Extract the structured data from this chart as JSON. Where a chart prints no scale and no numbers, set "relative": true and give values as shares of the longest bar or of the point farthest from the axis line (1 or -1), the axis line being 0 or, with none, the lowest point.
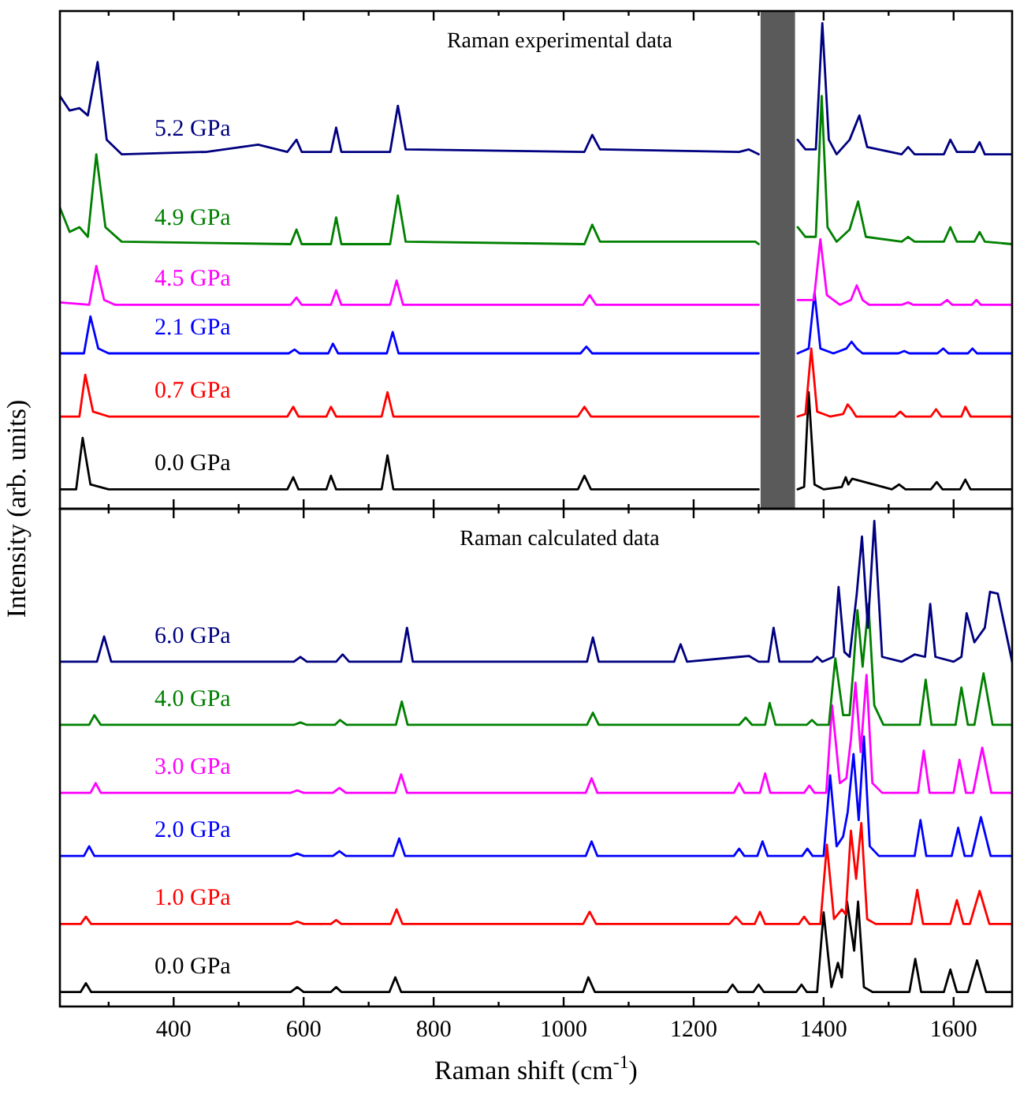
{
  "chart_data": [
    {
      "type": "line",
      "title": "Raman experimental data",
      "ylabel": "Intensity (arb. units)",
      "relative": true,
      "tick_labels": false,
      "xlim": [
        225,
        1690
      ],
      "xticks": [
        {
          "value": 300,
          "label": null
        },
        400,
        {
          "value": 500,
          "label": null
        },
        600,
        {
          "value": 700,
          "label": null
        },
        800,
        {
          "value": 900,
          "label": null
        },
        1000,
        {
          "value": 1100,
          "label": null
        },
        1200,
        {
          "value": 1300,
          "label": null
        },
        1400,
        {
          "value": 1500,
          "label": null
        },
        1600
      ],
      "bands": [
        {
          "axis": "x",
          "from": 1303,
          "to": 1356,
          "color": "#5a5a5a"
        }
      ],
      "series": [
        {
          "name": "0.0 GPa",
          "color": "#000000",
          "x": [
            225,
            250,
            260,
            272,
            300,
            575,
            584,
            592,
            635,
            642,
            650,
            720,
            729,
            738,
            1022,
            1032,
            1042,
            1295,
            1300,
            1330,
            1360,
            1370,
            1377,
            1386,
            1400,
            1428,
            1434,
            1438,
            1444,
            1505,
            1516,
            1526,
            1565,
            1574,
            1583,
            1610,
            1618,
            1626,
            1690
          ],
          "values": [
            0.04,
            0.04,
            0.146,
            0.05,
            0.04,
            0.04,
            0.065,
            0.04,
            0.04,
            0.068,
            0.04,
            0.04,
            0.11,
            0.04,
            0.04,
            0.068,
            0.04,
            0.04,
            0.04,
            null,
            0.04,
            0.045,
            0.24,
            0.05,
            0.04,
            0.045,
            0.065,
            0.05,
            0.062,
            0.04,
            0.05,
            0.04,
            0.04,
            0.055,
            0.04,
            0.04,
            0.06,
            0.04,
            0.04
          ]
        },
        {
          "name": "0.7 GPa",
          "color": "#ff0000",
          "x": [
            225,
            255,
            264,
            276,
            300,
            575,
            584,
            592,
            635,
            642,
            650,
            720,
            729,
            738,
            1022,
            1032,
            1042,
            1295,
            1300,
            1330,
            1360,
            1372,
            1381,
            1390,
            1410,
            1430,
            1437,
            1443,
            1450,
            1510,
            1518,
            1526,
            1565,
            1573,
            1581,
            1612,
            1618,
            1626,
            1690
          ],
          "values": [
            0.19,
            0.19,
            0.276,
            0.2,
            0.19,
            0.19,
            0.21,
            0.19,
            0.19,
            0.21,
            0.19,
            0.19,
            0.24,
            0.19,
            0.19,
            0.21,
            0.19,
            0.19,
            0.19,
            null,
            0.19,
            0.195,
            0.33,
            0.2,
            0.19,
            0.195,
            0.215,
            0.205,
            0.19,
            0.19,
            0.2,
            0.19,
            0.19,
            0.205,
            0.19,
            0.19,
            0.21,
            0.19,
            0.19
          ]
        },
        {
          "name": "2.1 GPa",
          "color": "#0000ff",
          "x": [
            225,
            262,
            272,
            284,
            300,
            577,
            586,
            594,
            638,
            645,
            653,
            728,
            737,
            746,
            1026,
            1035,
            1044,
            1295,
            1300,
            1330,
            1360,
            1377,
            1386,
            1395,
            1415,
            1435,
            1443,
            1451,
            1460,
            1515,
            1524,
            1532,
            1575,
            1584,
            1592,
            1622,
            1629,
            1636,
            1690
          ],
          "values": [
            0.32,
            0.32,
            0.396,
            0.33,
            0.32,
            0.32,
            0.328,
            0.32,
            0.32,
            0.34,
            0.32,
            0.32,
            0.364,
            0.32,
            0.32,
            0.334,
            0.32,
            0.32,
            0.32,
            null,
            0.32,
            0.33,
            0.445,
            0.33,
            0.32,
            0.33,
            0.344,
            0.33,
            0.32,
            0.32,
            0.325,
            0.32,
            0.32,
            0.33,
            0.32,
            0.32,
            0.33,
            0.32,
            0.32
          ]
        },
        {
          "name": "4.5 GPa",
          "color": "#ff00ff",
          "x": [
            225,
            270,
            281,
            293,
            310,
            580,
            589,
            597,
            642,
            650,
            658,
            733,
            743,
            753,
            1030,
            1040,
            1050,
            1295,
            1300,
            1330,
            1360,
            1385,
            1395,
            1405,
            1425,
            1442,
            1451,
            1460,
            1470,
            1520,
            1530,
            1538,
            1580,
            1590,
            1598,
            1628,
            1635,
            1642,
            1690
          ],
          "values": [
            0.425,
            0.42,
            0.5,
            0.43,
            0.42,
            0.42,
            0.435,
            0.42,
            0.42,
            0.45,
            0.42,
            0.42,
            0.47,
            0.42,
            0.42,
            0.44,
            0.42,
            0.42,
            0.42,
            null,
            0.43,
            0.43,
            0.555,
            0.44,
            0.42,
            0.43,
            0.46,
            0.43,
            0.42,
            0.42,
            0.425,
            0.42,
            0.42,
            0.43,
            0.42,
            0.42,
            0.43,
            0.42,
            0.42
          ]
        },
        {
          "name": "4.9 GPa",
          "color": "#008000",
          "x": [
            225,
            240,
            255,
            268,
            281,
            295,
            320,
            580,
            589,
            597,
            642,
            650,
            658,
            733,
            745,
            757,
            1032,
            1044,
            1056,
            1295,
            1300,
            1330,
            1360,
            1372,
            1388,
            1397,
            1406,
            1420,
            1440,
            1453,
            1465,
            1520,
            1530,
            1540,
            1585,
            1595,
            1605,
            1632,
            1640,
            1648,
            1690
          ],
          "values": [
            0.62,
            0.57,
            0.58,
            0.56,
            0.73,
            0.58,
            0.55,
            0.545,
            0.575,
            0.545,
            0.545,
            0.6,
            0.545,
            0.545,
            0.645,
            0.55,
            0.545,
            0.585,
            0.55,
            0.55,
            0.545,
            null,
            0.58,
            0.56,
            0.56,
            0.85,
            0.58,
            0.55,
            0.575,
            0.633,
            0.56,
            0.55,
            0.56,
            0.55,
            0.55,
            0.58,
            0.55,
            0.55,
            0.57,
            0.55,
            0.545
          ]
        },
        {
          "name": "5.2 GPa",
          "color": "#000080",
          "x": [
            225,
            240,
            255,
            268,
            283,
            297,
            320,
            450,
            530,
            575,
            589,
            597,
            642,
            650,
            658,
            733,
            745,
            757,
            1032,
            1044,
            1056,
            1270,
            1285,
            1300,
            1330,
            1360,
            1372,
            1388,
            1398,
            1408,
            1420,
            1440,
            1455,
            1467,
            1520,
            1530,
            1540,
            1585,
            1595,
            1605,
            1632,
            1640,
            1648,
            1690
          ],
          "values": [
            0.85,
            0.82,
            0.825,
            0.81,
            0.92,
            0.76,
            0.73,
            0.735,
            0.75,
            0.735,
            0.76,
            0.735,
            0.735,
            0.785,
            0.735,
            0.735,
            0.83,
            0.74,
            0.735,
            0.77,
            0.74,
            0.735,
            0.74,
            0.73,
            null,
            0.76,
            0.74,
            0.74,
            1,
            0.76,
            0.73,
            0.76,
            0.81,
            0.745,
            0.73,
            0.745,
            0.73,
            0.73,
            0.76,
            0.735,
            0.735,
            0.755,
            0.73,
            0.73
          ]
        }
      ]
    },
    {
      "type": "line",
      "title": "Raman calculated data",
      "xlabel": "Raman shift (cm$^{-1}$)",
      "relative": true,
      "tick_labels": "x",
      "xlim": [
        225,
        1690
      ],
      "xticks": [
        {
          "value": 300,
          "label": null
        },
        {
          "value": 400,
          "label": "400"
        },
        {
          "value": 500,
          "label": null
        },
        {
          "value": 600,
          "label": "600"
        },
        {
          "value": 700,
          "label": null
        },
        {
          "value": 800,
          "label": "800"
        },
        {
          "value": 900,
          "label": null
        },
        {
          "value": 1000,
          "label": "1000"
        },
        {
          "value": 1100,
          "label": null
        },
        {
          "value": 1200,
          "label": "1200"
        },
        {
          "value": 1300,
          "label": null
        },
        {
          "value": 1400,
          "label": "1400"
        },
        {
          "value": 1500,
          "label": null
        },
        {
          "value": 1600,
          "label": "1600"
        }
      ],
      "series": [
        {
          "name": "0.0 GPa",
          "color": "#000000",
          "x": [
            225,
            257,
            265,
            273,
            580,
            590,
            600,
            642,
            650,
            658,
            732,
            741,
            750,
            1030,
            1038,
            1048,
            1252,
            1260,
            1268,
            1292,
            1300,
            1308,
            1358,
            1366,
            1374,
            1390,
            1400,
            1412,
            1422,
            1428,
            1436,
            1447,
            1453,
            1462,
            1475,
            1532,
            1541,
            1550,
            1585,
            1595,
            1605,
            1622,
            1636,
            1650,
            1690
          ],
          "values": [
            0.03,
            0.03,
            0.048,
            0.03,
            0.03,
            0.04,
            0.03,
            0.03,
            0.04,
            0.03,
            0.03,
            0.06,
            0.03,
            0.03,
            0.06,
            0.03,
            0.03,
            0.045,
            0.03,
            0.03,
            0.045,
            0.03,
            0.03,
            0.045,
            0.03,
            0.03,
            0.194,
            0.04,
            0.09,
            0.06,
            0.216,
            0.115,
            0.216,
            0.04,
            0.03,
            0.03,
            0.098,
            0.03,
            0.03,
            0.076,
            0.03,
            0.03,
            0.095,
            0.03,
            0.03
          ]
        },
        {
          "name": "1.0 GPa",
          "color": "#ff0000",
          "x": [
            225,
            257,
            265,
            273,
            580,
            590,
            600,
            642,
            650,
            658,
            734,
            743,
            752,
            1030,
            1040,
            1050,
            1255,
            1265,
            1275,
            1294,
            1302,
            1310,
            1362,
            1370,
            1378,
            1395,
            1405,
            1416,
            1428,
            1434,
            1442,
            1450,
            1458,
            1467,
            1480,
            1535,
            1544,
            1553,
            1595,
            1605,
            1615,
            1625,
            1640,
            1655,
            1690
          ],
          "values": [
            0.17,
            0.17,
            0.185,
            0.17,
            0.17,
            0.175,
            0.17,
            0.17,
            0.178,
            0.17,
            0.17,
            0.2,
            0.17,
            0.17,
            0.195,
            0.17,
            0.17,
            0.185,
            0.17,
            0.17,
            0.195,
            0.17,
            0.17,
            0.185,
            0.17,
            0.17,
            0.333,
            0.18,
            0.2,
            0.19,
            0.362,
            0.263,
            0.378,
            0.18,
            0.17,
            0.17,
            0.24,
            0.17,
            0.17,
            0.219,
            0.17,
            0.17,
            0.238,
            0.17,
            0.17
          ]
        },
        {
          "name": "2.0 GPa",
          "color": "#0000ff",
          "x": [
            225,
            262,
            270,
            278,
            580,
            590,
            600,
            645,
            655,
            665,
            738,
            747,
            756,
            1034,
            1043,
            1052,
            1262,
            1270,
            1278,
            1298,
            1306,
            1314,
            1367,
            1375,
            1383,
            1400,
            1410,
            1420,
            1430,
            1437,
            1446,
            1454,
            1462,
            1471,
            1485,
            1540,
            1549,
            1558,
            1597,
            1607,
            1617,
            1628,
            1642,
            1657,
            1690
          ],
          "values": [
            0.31,
            0.31,
            0.33,
            0.31,
            0.31,
            0.315,
            0.31,
            0.31,
            0.32,
            0.31,
            0.31,
            0.346,
            0.31,
            0.31,
            0.34,
            0.31,
            0.31,
            0.325,
            0.31,
            0.31,
            0.34,
            0.31,
            0.31,
            0.325,
            0.31,
            0.31,
            0.476,
            0.33,
            0.35,
            0.4,
            0.52,
            0.384,
            0.556,
            0.33,
            0.31,
            0.31,
            0.384,
            0.31,
            0.31,
            0.368,
            0.31,
            0.31,
            0.39,
            0.31,
            0.31
          ]
        },
        {
          "name": "3.0 GPa",
          "color": "#ff00ff",
          "x": [
            225,
            272,
            280,
            288,
            580,
            590,
            600,
            645,
            655,
            665,
            741,
            750,
            759,
            1034,
            1043,
            1052,
            1262,
            1270,
            1278,
            1302,
            1310,
            1318,
            1370,
            1378,
            1386,
            1404,
            1413,
            1425,
            1435,
            1442,
            1449,
            1457,
            1466,
            1475,
            1490,
            1545,
            1554,
            1563,
            1600,
            1609,
            1619,
            1630,
            1644,
            1658,
            1690
          ],
          "values": [
            0.44,
            0.44,
            0.46,
            0.44,
            0.44,
            0.445,
            0.44,
            0.44,
            0.45,
            0.44,
            0.44,
            0.478,
            0.44,
            0.44,
            0.47,
            0.44,
            0.44,
            0.46,
            0.44,
            0.44,
            0.48,
            0.44,
            0.44,
            0.455,
            0.44,
            0.44,
            0.62,
            0.46,
            0.47,
            0.55,
            0.667,
            0.524,
            0.683,
            0.46,
            0.44,
            0.44,
            0.527,
            0.44,
            0.44,
            0.508,
            0.44,
            0.44,
            0.533,
            0.44,
            0.44
          ]
        },
        {
          "name": "4.0 GPa",
          "color": "#008000",
          "x": [
            225,
            270,
            278,
            288,
            585,
            595,
            605,
            648,
            656,
            666,
            742,
            751,
            760,
            1036,
            1045,
            1054,
            1270,
            1280,
            1290,
            1310,
            1317,
            1326,
            1374,
            1382,
            1390,
            1408,
            1418,
            1430,
            1440,
            1446,
            1452,
            1460,
            1469,
            1478,
            1492,
            1548,
            1557,
            1566,
            1603,
            1612,
            1622,
            1632,
            1646,
            1660,
            1690
          ],
          "values": [
            0.58,
            0.58,
            0.6,
            0.58,
            0.58,
            0.585,
            0.58,
            0.58,
            0.59,
            0.58,
            0.58,
            0.628,
            0.58,
            0.58,
            0.605,
            0.58,
            0.58,
            0.595,
            0.58,
            0.58,
            0.625,
            0.58,
            0.58,
            0.59,
            0.58,
            0.58,
            0.717,
            0.6,
            0.6,
            0.7,
            0.816,
            0.7,
            0.829,
            0.62,
            0.58,
            0.58,
            0.673,
            0.58,
            0.58,
            0.657,
            0.58,
            0.58,
            0.686,
            0.58,
            0.58
          ]
        },
        {
          "name": "6.0 GPa",
          "color": "#000080",
          "x": [
            225,
            282,
            293,
            304,
            585,
            595,
            605,
            650,
            660,
            670,
            750,
            759,
            768,
            1036,
            1045,
            1054,
            1170,
            1180,
            1190,
            1270,
            1285,
            1300,
            1315,
            1323,
            1332,
            1382,
            1390,
            1398,
            1415,
            1423,
            1432,
            1440,
            1451,
            1459,
            1468,
            1478,
            1490,
            1520,
            1540,
            1556,
            1564,
            1572,
            1600,
            1612,
            1620,
            1632,
            1648,
            1656,
            1668,
            1690
          ],
          "values": [
            0.71,
            0.71,
            0.762,
            0.71,
            0.71,
            0.72,
            0.71,
            0.71,
            0.725,
            0.71,
            0.71,
            0.78,
            0.71,
            0.71,
            0.76,
            0.71,
            0.71,
            0.746,
            0.71,
            0.72,
            0.722,
            0.71,
            0.71,
            0.78,
            0.71,
            0.71,
            0.72,
            0.71,
            0.72,
            0.864,
            0.73,
            0.72,
            0.85,
            0.968,
            0.78,
            1,
            0.72,
            0.71,
            0.725,
            0.72,
            0.829,
            0.72,
            0.71,
            0.72,
            0.81,
            0.75,
            0.78,
            0.854,
            0.85,
            0.71
          ]
        }
      ]
    }
  ]
}
